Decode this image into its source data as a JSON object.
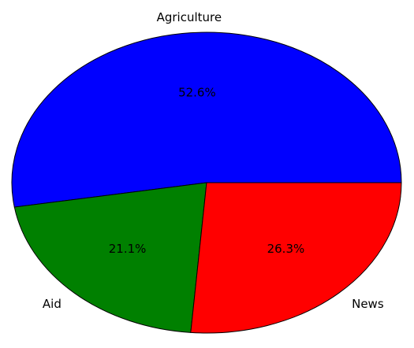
{
  "chart_data": {
    "type": "pie",
    "title": "",
    "slices": [
      {
        "label": "Agriculture",
        "percent_label": "52.6%",
        "value": 52.6,
        "color": "#0000ff"
      },
      {
        "label": "Aid",
        "percent_label": "21.1%",
        "value": 21.1,
        "color": "#008000"
      },
      {
        "label": "News",
        "percent_label": "26.3%",
        "value": 26.3,
        "color": "#ff0000"
      }
    ],
    "legend": "none",
    "start_angle_deg": 0,
    "direction": "counterclockwise"
  }
}
